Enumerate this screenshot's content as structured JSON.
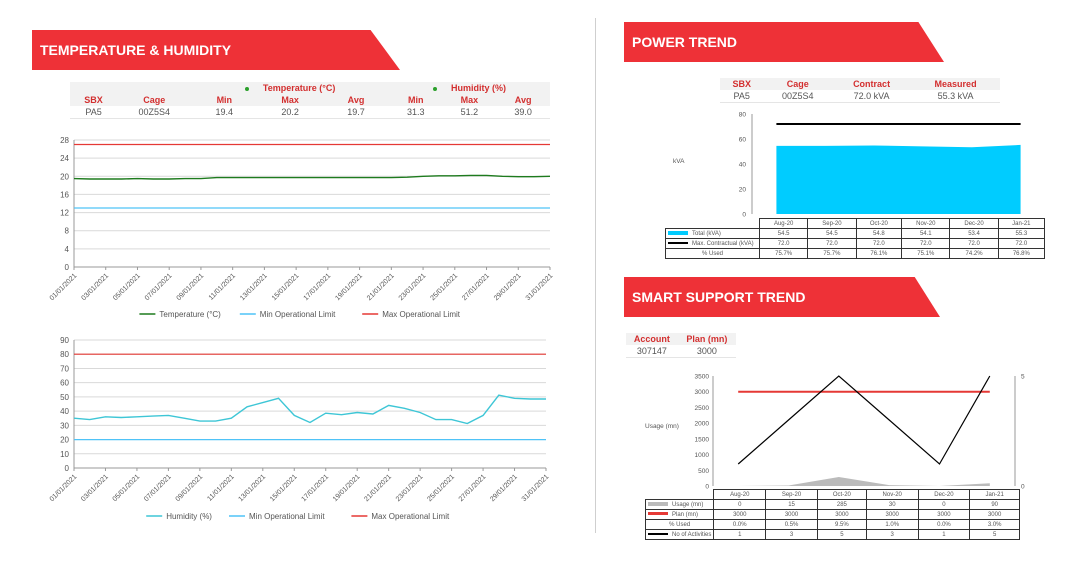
{
  "temperature_humidity": {
    "title": "TEMPERATURE & HUMIDITY",
    "table": {
      "group_headers": [
        "Temperature (°C)",
        "Humidity (%)"
      ],
      "columns": [
        "SBX",
        "Cage",
        "Min",
        "Max",
        "Avg",
        "Min",
        "Max",
        "Avg"
      ],
      "row": [
        "PA5",
        "00Z5S4",
        "19.4",
        "20.2",
        "19.7",
        "31.3",
        "51.2",
        "39.0"
      ]
    }
  },
  "power": {
    "title": "POWER TREND",
    "table": {
      "columns": [
        "SBX",
        "Cage",
        "Contract",
        "Measured"
      ],
      "row": [
        "PA5",
        "00Z5S4",
        "72.0 kVA",
        "55.3 kVA"
      ]
    }
  },
  "support": {
    "title": "SMART SUPPORT TREND",
    "table": {
      "columns": [
        "Account",
        "Plan (mn)"
      ],
      "row": [
        "307147",
        "3000"
      ]
    }
  },
  "colors": {
    "accent_red": "#ee3137",
    "temperature_line": "#1e7b1e",
    "min_limit_line": "#4fc3f7",
    "max_limit_line": "#e53935",
    "humidity_line": "#3ec6d6",
    "power_area": "#00ccff",
    "usage_area": "#bbbbbb"
  },
  "chart_data": [
    {
      "type": "line",
      "x_tick_labels": [
        "01/01/2021",
        "03/01/2021",
        "05/01/2021",
        "07/01/2021",
        "09/01/2021",
        "11/01/2021",
        "13/01/2021",
        "15/01/2021",
        "17/01/2021",
        "19/01/2021",
        "21/01/2021",
        "23/01/2021",
        "25/01/2021",
        "27/01/2021",
        "29/01/2021",
        "31/01/2021"
      ],
      "y_ticks": [
        0,
        4,
        8,
        12,
        16,
        20,
        24,
        28
      ],
      "ylim": [
        0,
        28
      ],
      "grid": true,
      "legend_placement": "bottom",
      "series": [
        {
          "name": "Temperature (°C)",
          "values": [
            19.5,
            19.4,
            19.4,
            19.4,
            19.5,
            19.4,
            19.4,
            19.5,
            19.5,
            19.7,
            19.7,
            19.7,
            19.7,
            19.7,
            19.7,
            19.7,
            19.7,
            19.7,
            19.7,
            19.7,
            19.7,
            19.8,
            20.0,
            20.1,
            20.1,
            20.2,
            20.2,
            20.0,
            19.9,
            19.9,
            20.0
          ]
        },
        {
          "name": "Min Operational Limit",
          "values": [
            13,
            13,
            13,
            13,
            13,
            13,
            13,
            13,
            13,
            13,
            13,
            13,
            13,
            13,
            13,
            13,
            13,
            13,
            13,
            13,
            13,
            13,
            13,
            13,
            13,
            13,
            13,
            13,
            13,
            13,
            13
          ]
        },
        {
          "name": "Max Operational Limit",
          "values": [
            27,
            27,
            27,
            27,
            27,
            27,
            27,
            27,
            27,
            27,
            27,
            27,
            27,
            27,
            27,
            27,
            27,
            27,
            27,
            27,
            27,
            27,
            27,
            27,
            27,
            27,
            27,
            27,
            27,
            27,
            27
          ]
        }
      ]
    },
    {
      "type": "line",
      "x_tick_labels": [
        "01/01/2021",
        "03/01/2021",
        "05/01/2021",
        "07/01/2021",
        "09/01/2021",
        "11/01/2021",
        "13/01/2021",
        "15/01/2021",
        "17/01/2021",
        "19/01/2021",
        "21/01/2021",
        "23/01/2021",
        "25/01/2021",
        "27/01/2021",
        "29/01/2021",
        "31/01/2021"
      ],
      "y_ticks": [
        0,
        10,
        20,
        30,
        40,
        50,
        60,
        70,
        80,
        90
      ],
      "ylim": [
        0,
        90
      ],
      "grid": true,
      "legend_placement": "bottom",
      "series": [
        {
          "name": "Humidity (%)",
          "values": [
            35,
            34,
            36,
            35.5,
            36,
            36.5,
            37,
            35,
            33,
            33,
            35,
            43,
            46,
            49,
            37,
            32,
            38.5,
            37.5,
            39,
            38,
            44,
            42,
            39,
            34,
            34,
            31.3,
            37,
            51.2,
            49,
            48.5,
            48.5
          ]
        },
        {
          "name": "Min Operational Limit",
          "values": [
            20,
            20,
            20,
            20,
            20,
            20,
            20,
            20,
            20,
            20,
            20,
            20,
            20,
            20,
            20,
            20,
            20,
            20,
            20,
            20,
            20,
            20,
            20,
            20,
            20,
            20,
            20,
            20,
            20,
            20,
            20
          ]
        },
        {
          "name": "Max Operational Limit",
          "values": [
            80,
            80,
            80,
            80,
            80,
            80,
            80,
            80,
            80,
            80,
            80,
            80,
            80,
            80,
            80,
            80,
            80,
            80,
            80,
            80,
            80,
            80,
            80,
            80,
            80,
            80,
            80,
            80,
            80,
            80,
            80
          ]
        }
      ]
    },
    {
      "type": "area",
      "categories": [
        "Aug-20",
        "Sep-20",
        "Oct-20",
        "Nov-20",
        "Dec-20",
        "Jan-21"
      ],
      "ylabel": "kVA",
      "y_ticks": [
        0,
        20,
        40,
        60,
        80
      ],
      "ylim": [
        0,
        80
      ],
      "grid": false,
      "series": [
        {
          "name": "Total (kVA)",
          "values": [
            54.5,
            54.5,
            54.8,
            54.1,
            53.4,
            55.3
          ]
        },
        {
          "name": "Max. Contractual (kVA)",
          "values": [
            72.0,
            72.0,
            72.0,
            72.0,
            72.0,
            72.0
          ]
        }
      ],
      "table": {
        "rows": [
          {
            "label": "Total (kVA)",
            "values": [
              "54.5",
              "54.5",
              "54.8",
              "54.1",
              "53.4",
              "55.3"
            ]
          },
          {
            "label": "Max. Contractual (kVA)",
            "values": [
              "72.0",
              "72.0",
              "72.0",
              "72.0",
              "72.0",
              "72.0"
            ]
          },
          {
            "label": "% Used",
            "values": [
              "75.7%",
              "75.7%",
              "76.1%",
              "75.1%",
              "74.2%",
              "76.8%"
            ]
          }
        ]
      }
    },
    {
      "type": "line",
      "categories": [
        "Aug-20",
        "Sep-20",
        "Oct-20",
        "Nov-20",
        "Dec-20",
        "Jan-21"
      ],
      "ylabel": "Usage (mn)",
      "y_ticks": [
        0,
        500,
        1000,
        1500,
        2000,
        2500,
        3000,
        3500
      ],
      "ylim": [
        0,
        3500
      ],
      "y2_ticks": [
        0,
        5
      ],
      "y2lim": [
        0,
        5
      ],
      "grid": false,
      "series": [
        {
          "name": "Usage (mn)",
          "values": [
            0,
            15,
            285,
            30,
            0,
            90
          ]
        },
        {
          "name": "Plan (mn)",
          "values": [
            3000,
            3000,
            3000,
            3000,
            3000,
            3000
          ]
        },
        {
          "name": "No of Activities",
          "axis": "right",
          "values": [
            1,
            3,
            5,
            3,
            1,
            5
          ]
        }
      ],
      "table": {
        "rows": [
          {
            "label": "Usage (mn)",
            "values": [
              "0",
              "15",
              "285",
              "30",
              "0",
              "90"
            ]
          },
          {
            "label": "Plan (mn)",
            "values": [
              "3000",
              "3000",
              "3000",
              "3000",
              "3000",
              "3000"
            ]
          },
          {
            "label": "% Used",
            "values": [
              "0.0%",
              "0.5%",
              "9.5%",
              "1.0%",
              "0.0%",
              "3.0%"
            ]
          },
          {
            "label": "No of Activities",
            "values": [
              "1",
              "3",
              "5",
              "3",
              "1",
              "5"
            ]
          }
        ]
      }
    }
  ]
}
